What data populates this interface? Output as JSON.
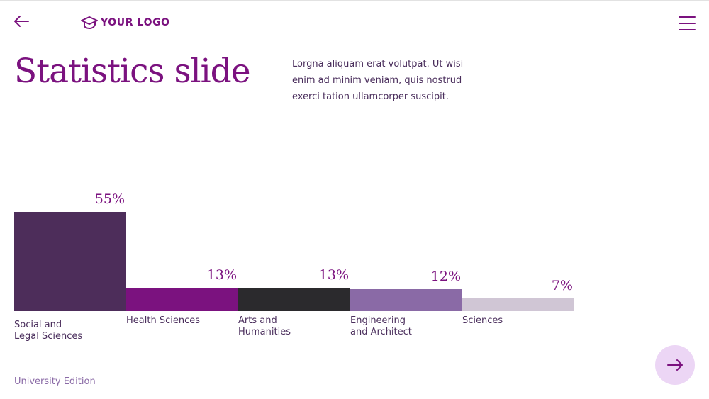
{
  "header": {
    "logo_text": "YOUR LOGO",
    "back_icon": "arrow-left-icon",
    "logo_icon": "graduation-cap-icon",
    "menu_icon": "hamburger-menu-icon"
  },
  "slide": {
    "title": "Statistics slide",
    "intro": "Lorgna aliquam erat volutpat. Ut wisi enim ad minim veniam, quis nostrud exerci tation ullamcorper suscipit.",
    "footer": "University Edition"
  },
  "nav": {
    "next_icon": "arrow-right-icon"
  },
  "colors": {
    "brand": "#7b127f",
    "bars": [
      "#4d2d5a",
      "#7b127f",
      "#2b2a2d",
      "#8a6aa6",
      "#d0c6d5"
    ],
    "next_button_bg": "#ecd6f5"
  },
  "chart_data": {
    "type": "bar",
    "categories": [
      [
        "Social and",
        "Legal Sciences"
      ],
      [
        "Health Sciences"
      ],
      [
        "Arts and",
        "Humanities"
      ],
      [
        "Engineering",
        "and Architect"
      ],
      [
        "Sciences"
      ]
    ],
    "values": [
      55,
      13,
      13,
      12,
      7
    ],
    "value_labels": [
      "55%",
      "13%",
      "13%",
      "12%",
      "7%"
    ],
    "unit": "%",
    "grid": false,
    "legend": "none"
  }
}
